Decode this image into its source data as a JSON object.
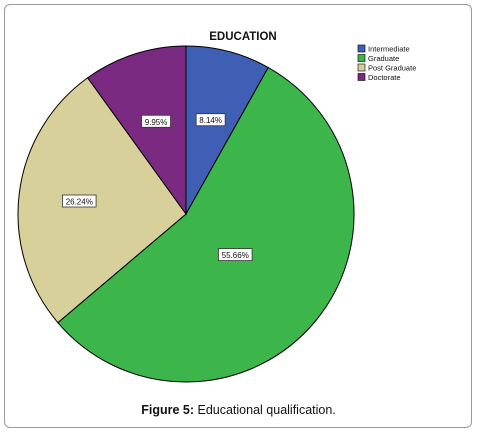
{
  "caption": {
    "label": "Figure 5:",
    "text": " Educational qualification."
  },
  "chart_data": {
    "type": "pie",
    "title": "EDUCATION",
    "legend_position": "top-right",
    "categories": [
      "Intermediate",
      "Graduate",
      "Post Graduate",
      "Doctorate"
    ],
    "values": [
      8.14,
      55.66,
      26.24,
      9.95
    ],
    "labels": [
      "8.14%",
      "55.66%",
      "26.24%",
      "9.95%"
    ],
    "colors": [
      "#3f5fb5",
      "#3cb54a",
      "#d8d09a",
      "#7a2a80"
    ],
    "start_angle_deg": 0,
    "direction": "clockwise"
  }
}
